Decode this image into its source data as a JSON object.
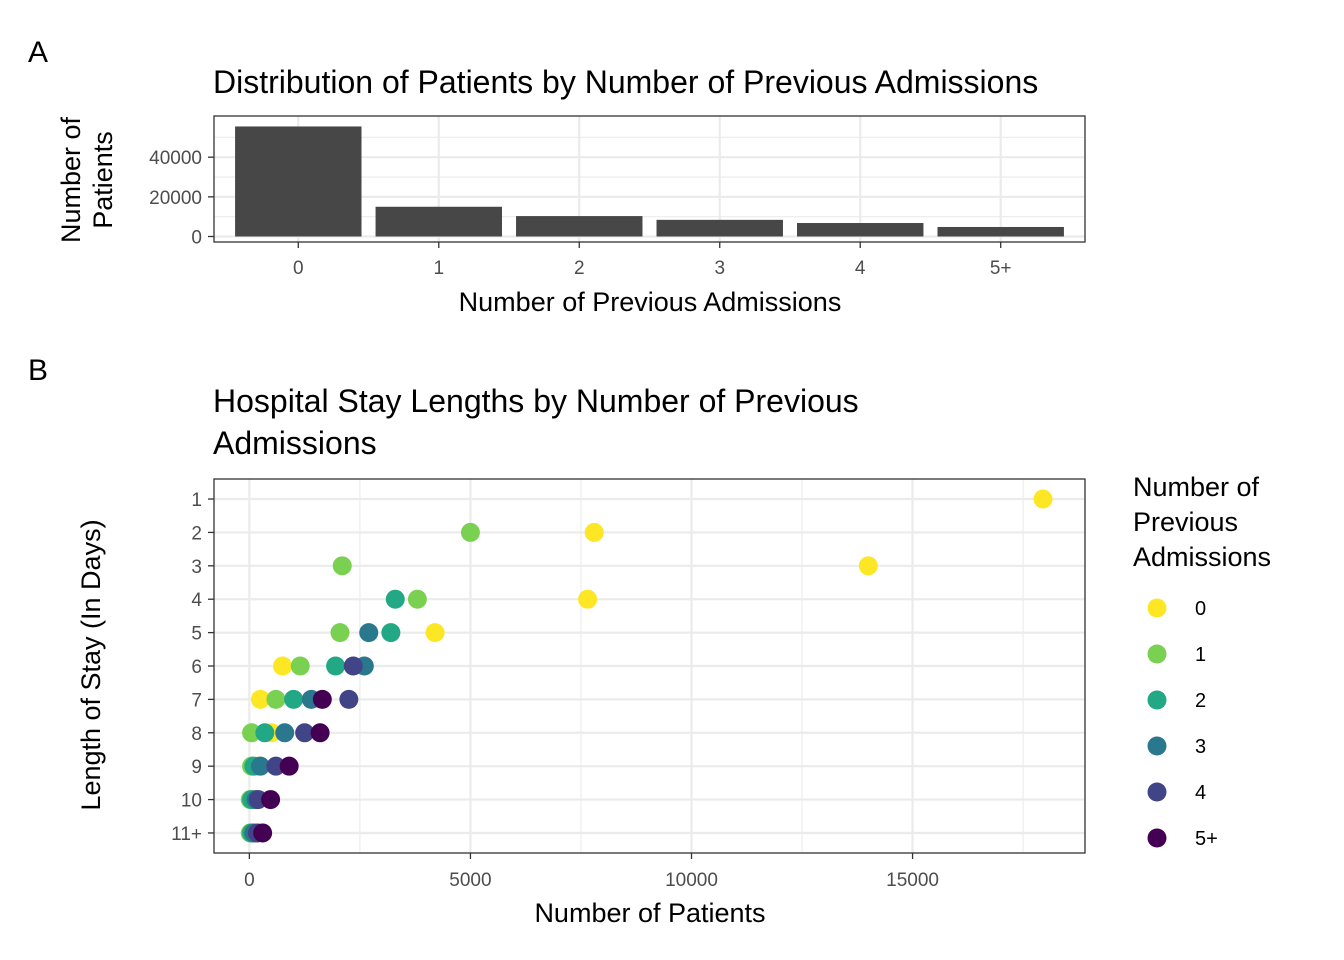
{
  "panel_tags": {
    "a": "A",
    "b": "B"
  },
  "colors": {
    "bar": "#474747",
    "levels": [
      "#FDE725",
      "#7AD151",
      "#22A884",
      "#2A788E",
      "#414487",
      "#440154"
    ]
  },
  "chart_data": [
    {
      "type": "bar",
      "title": "Distribution of Patients by Number of Previous Admissions",
      "xlabel": "Number of Previous Admissions",
      "ylabel": [
        "Number of",
        "Patients"
      ],
      "categories": [
        "0",
        "1",
        "2",
        "3",
        "4",
        "5+"
      ],
      "values": [
        55500,
        15000,
        10300,
        8400,
        6800,
        4800
      ],
      "ylim": [
        0,
        58000
      ],
      "yticks": [
        0,
        20000,
        40000
      ],
      "yticks_minor": [
        10000,
        30000,
        50000
      ],
      "grid": true
    },
    {
      "type": "scatter",
      "title": [
        "Hospital Stay Lengths by Number of Previous",
        "Admissions"
      ],
      "xlabel": "Number of Patients",
      "ylabel": "Length of Stay (In Days)",
      "y_categories": [
        "1",
        "2",
        "3",
        "4",
        "5",
        "6",
        "7",
        "8",
        "9",
        "10",
        "11+"
      ],
      "xlim": [
        -800,
        18900
      ],
      "xticks": [
        0,
        5000,
        10000,
        15000
      ],
      "xticks_minor": [
        2500,
        7500,
        12500,
        17500
      ],
      "grid": true,
      "legend": {
        "title": [
          "Number of",
          "Previous",
          "Admissions"
        ],
        "position": "right",
        "entries": [
          "0",
          "1",
          "2",
          "3",
          "4",
          "5+"
        ]
      },
      "series": [
        {
          "name": "0",
          "points": [
            [
              17950,
              "1"
            ],
            [
              7800,
              "2"
            ],
            [
              14000,
              "3"
            ],
            [
              7650,
              "4"
            ],
            [
              4200,
              "5"
            ],
            [
              750,
              "6"
            ],
            [
              250,
              "7"
            ],
            [
              500,
              "8"
            ],
            [
              200,
              "9"
            ],
            [
              100,
              "10"
            ],
            [
              150,
              "11+"
            ]
          ]
        },
        {
          "name": "1",
          "points": [
            [
              5000,
              "2"
            ],
            [
              2100,
              "3"
            ],
            [
              3800,
              "4"
            ],
            [
              2050,
              "5"
            ],
            [
              1150,
              "6"
            ],
            [
              600,
              "7"
            ],
            [
              50,
              "8"
            ],
            [
              50,
              "9"
            ],
            [
              20,
              "10"
            ],
            [
              20,
              "11+"
            ]
          ]
        },
        {
          "name": "2",
          "points": [
            [
              3300,
              "4"
            ],
            [
              3200,
              "5"
            ],
            [
              1950,
              "6"
            ],
            [
              1000,
              "7"
            ],
            [
              350,
              "8"
            ],
            [
              100,
              "9"
            ],
            [
              50,
              "10"
            ],
            [
              50,
              "11+"
            ]
          ]
        },
        {
          "name": "3",
          "points": [
            [
              2700,
              "5"
            ],
            [
              2600,
              "6"
            ],
            [
              1400,
              "7"
            ],
            [
              800,
              "8"
            ],
            [
              250,
              "9"
            ],
            [
              150,
              "10"
            ],
            [
              100,
              "11+"
            ]
          ]
        },
        {
          "name": "4",
          "points": [
            [
              2350,
              "6"
            ],
            [
              2250,
              "7"
            ],
            [
              1250,
              "8"
            ],
            [
              600,
              "9"
            ],
            [
              200,
              "10"
            ],
            [
              180,
              "11+"
            ]
          ]
        },
        {
          "name": "5+",
          "points": [
            [
              1650,
              "7"
            ],
            [
              1600,
              "8"
            ],
            [
              900,
              "9"
            ],
            [
              480,
              "10"
            ],
            [
              300,
              "11+"
            ]
          ]
        }
      ]
    }
  ]
}
